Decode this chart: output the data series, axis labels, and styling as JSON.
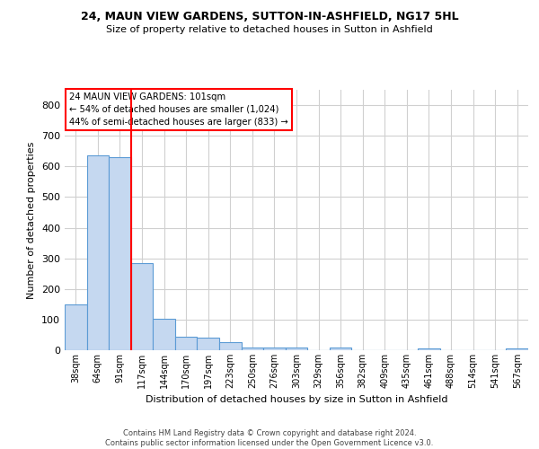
{
  "title1": "24, MAUN VIEW GARDENS, SUTTON-IN-ASHFIELD, NG17 5HL",
  "title2": "Size of property relative to detached houses in Sutton in Ashfield",
  "xlabel": "Distribution of detached houses by size in Sutton in Ashfield",
  "ylabel": "Number of detached properties",
  "annotation_line": "24 MAUN VIEW GARDENS: 101sqm\n← 54% of detached houses are smaller (1,024)\n44% of semi-detached houses are larger (833) →",
  "footer1": "Contains HM Land Registry data © Crown copyright and database right 2024.",
  "footer2": "Contains public sector information licensed under the Open Government Licence v3.0.",
  "bar_labels": [
    "38sqm",
    "64sqm",
    "91sqm",
    "117sqm",
    "144sqm",
    "170sqm",
    "197sqm",
    "223sqm",
    "250sqm",
    "276sqm",
    "303sqm",
    "329sqm",
    "356sqm",
    "382sqm",
    "409sqm",
    "435sqm",
    "461sqm",
    "488sqm",
    "514sqm",
    "541sqm",
    "567sqm"
  ],
  "bar_values": [
    150,
    635,
    630,
    285,
    102,
    45,
    42,
    27,
    10,
    10,
    8,
    0,
    8,
    0,
    0,
    0,
    5,
    0,
    0,
    0,
    5
  ],
  "bar_color": "#c5d8f0",
  "bar_edge_color": "#5b9bd5",
  "red_line_x": 2.5,
  "ylim": [
    0,
    850
  ],
  "yticks": [
    0,
    100,
    200,
    300,
    400,
    500,
    600,
    700,
    800
  ],
  "bg_color": "#ffffff",
  "grid_color": "#d0d0d0"
}
